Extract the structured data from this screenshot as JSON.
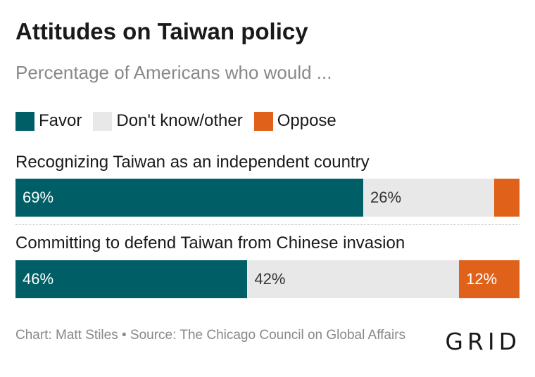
{
  "title": "Attitudes on Taiwan policy",
  "subtitle": "Percentage of Americans who would ...",
  "legend": [
    {
      "label": "Favor",
      "color": "#005f66"
    },
    {
      "label": "Don't know/other",
      "color": "#e8e8e8"
    },
    {
      "label": "Oppose",
      "color": "#e0621a"
    }
  ],
  "footer": "Chart: Matt Stiles • Source: The Chicago Council on Global Affairs",
  "logo": "GRID",
  "chart_data": {
    "type": "bar",
    "orientation": "horizontal-stacked",
    "title": "Attitudes on Taiwan policy",
    "subtitle": "Percentage of Americans who would ...",
    "categories": [
      "Recognizing Taiwan as an independent country",
      "Committing to defend Taiwan from Chinese invasion"
    ],
    "series": [
      {
        "name": "Favor",
        "values": [
          69,
          46
        ],
        "labels": [
          "69%",
          "46%"
        ],
        "color": "#005f66",
        "text_color": "#ffffff"
      },
      {
        "name": "Don't know/other",
        "values": [
          26,
          42
        ],
        "labels": [
          "26%",
          "42%"
        ],
        "color": "#e8e8e8",
        "text_color": "#333333"
      },
      {
        "name": "Oppose",
        "values": [
          5,
          12
        ],
        "labels": [
          "",
          "12%"
        ],
        "color": "#e0621a",
        "text_color": "#ffffff"
      }
    ],
    "xlim": [
      0,
      100
    ],
    "legend_position": "top-left",
    "grid": false
  }
}
